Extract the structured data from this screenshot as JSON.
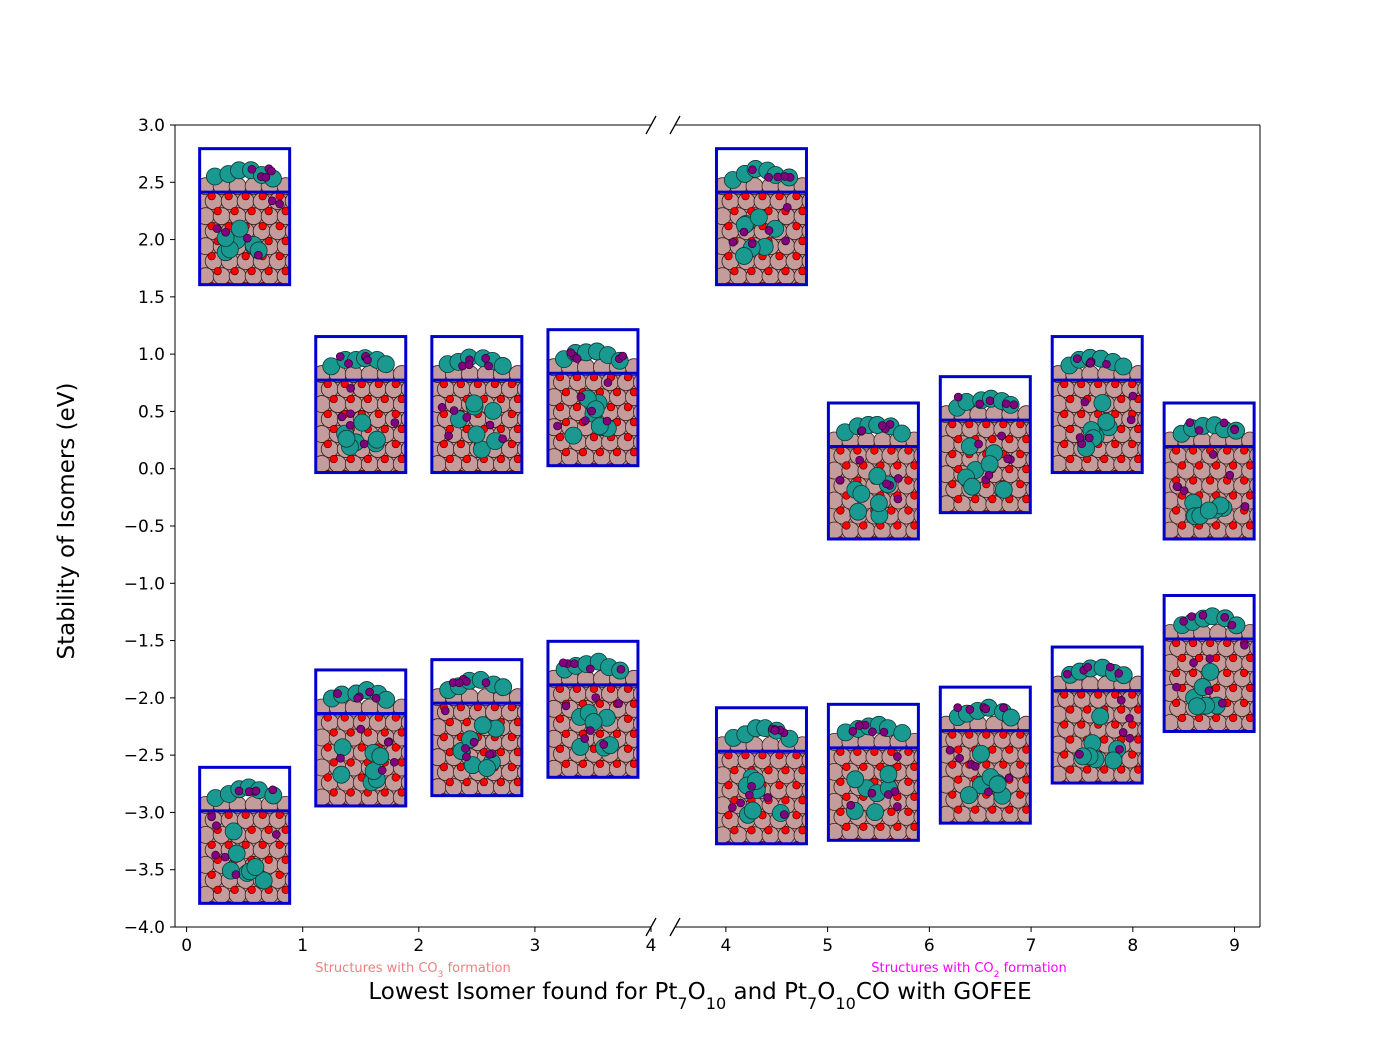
{
  "chart_data": {
    "type": "scatter",
    "xlabel_parts": [
      {
        "t": "Lowest Isomer found for Pt"
      },
      {
        "t": "7",
        "sub": true
      },
      {
        "t": "O"
      },
      {
        "t": "10",
        "sub": true
      },
      {
        "t": " and Pt"
      },
      {
        "t": "7",
        "sub": true
      },
      {
        "t": "O"
      },
      {
        "t": "10",
        "sub": true
      },
      {
        "t": "CO with GOFEE"
      }
    ],
    "ylabel": "Stability of Isomers (eV)",
    "ylim": [
      -4.0,
      3.0
    ],
    "yticks": [
      "3.0",
      "2.5",
      "2.0",
      "1.5",
      "1.0",
      "0.5",
      "0.0",
      "−0.5",
      "−1.0",
      "−1.5",
      "−2.0",
      "−2.5",
      "−3.0",
      "−3.5",
      "−4.0"
    ],
    "yticks_values": [
      3.0,
      2.5,
      2.0,
      1.5,
      1.0,
      0.5,
      0.0,
      -0.5,
      -1.0,
      -1.5,
      -2.0,
      -2.5,
      -3.0,
      -3.5,
      -4.0
    ],
    "broken_x_axis": true,
    "left_panel": {
      "xlim": [
        -0.1,
        4.0
      ],
      "xticks": [
        0,
        1,
        2,
        3,
        4
      ]
    },
    "right_panel": {
      "xlim": [
        3.5,
        9.25
      ],
      "xticks": [
        4,
        5,
        6,
        7,
        8,
        9
      ]
    },
    "series": [
      {
        "points": [
          {
            "x": 0.5,
            "y": 2.2
          },
          {
            "x": 1.5,
            "y": 0.56
          },
          {
            "x": 2.5,
            "y": 0.56
          },
          {
            "x": 3.5,
            "y": 0.62
          },
          {
            "x": 4.35,
            "y": 2.2
          },
          {
            "x": 5.45,
            "y": -0.02
          },
          {
            "x": 6.55,
            "y": 0.21
          },
          {
            "x": 7.65,
            "y": 0.56
          },
          {
            "x": 8.75,
            "y": -0.02
          }
        ]
      },
      {
        "points": [
          {
            "x": 0.5,
            "y": -3.2
          },
          {
            "x": 1.5,
            "y": -2.35
          },
          {
            "x": 2.5,
            "y": -2.26
          },
          {
            "x": 3.5,
            "y": -2.1
          },
          {
            "x": 4.35,
            "y": -2.68
          },
          {
            "x": 5.45,
            "y": -2.65
          },
          {
            "x": 6.55,
            "y": -2.5
          },
          {
            "x": 7.65,
            "y": -2.15
          },
          {
            "x": 8.75,
            "y": -1.7
          }
        ]
      }
    ],
    "annotations": [
      {
        "parts": [
          {
            "t": "Structures with CO"
          },
          {
            "t": "3",
            "sub": true
          },
          {
            "t": " formation"
          }
        ],
        "color": "#f08080"
      },
      {
        "parts": [
          {
            "t": "Structures with CO"
          },
          {
            "t": "2",
            "sub": true
          },
          {
            "t": " formation"
          }
        ],
        "color": "#ff00ff"
      }
    ],
    "marker_style": {
      "frame": "#0000cc",
      "slab": "#c49c9c",
      "pt": "#1a9990",
      "o": "#ff0000",
      "c": "#800080"
    }
  }
}
